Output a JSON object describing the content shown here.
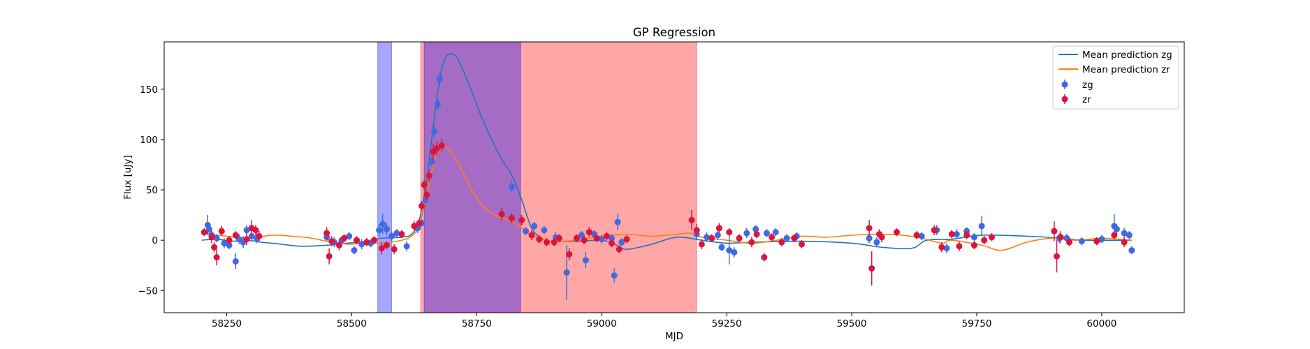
{
  "chart_data": {
    "type": "scatter",
    "title": "GP Regression",
    "xlabel": "MJD",
    "ylabel": "Flux [uJy]",
    "xlim": [
      58125,
      60165
    ],
    "ylim": [
      -72,
      197
    ],
    "x_ticks": [
      58250,
      58500,
      58750,
      59000,
      59250,
      59500,
      59750,
      60000
    ],
    "y_ticks": [
      -50,
      0,
      50,
      100,
      150
    ],
    "legend_position": "top-right",
    "shaded_regions": [
      {
        "x_start": 58552,
        "x_end": 58580,
        "color": "#0000ff",
        "opacity": 0.35
      },
      {
        "x_start": 58638,
        "x_end": 59190,
        "color": "#ff0000",
        "opacity": 0.35
      },
      {
        "x_start": 58645,
        "x_end": 58838,
        "color": "#0000ff",
        "opacity": 0.35
      }
    ],
    "series": [
      {
        "name": "Mean prediction zg",
        "kind": "line",
        "color": "#1f77b4",
        "x": [
          58200,
          58230,
          58260,
          58290,
          58320,
          58360,
          58400,
          58450,
          58490,
          58530,
          58560,
          58600,
          58620,
          58635,
          58650,
          58660,
          58670,
          58680,
          58690,
          58700,
          58710,
          58720,
          58740,
          58760,
          58780,
          58800,
          58820,
          58840,
          58860,
          58880,
          58900,
          58950,
          59000,
          59025,
          59050,
          59100,
          59150,
          59200,
          59250,
          59300,
          59400,
          59500,
          59560,
          59620,
          59650,
          59700,
          59760,
          59850,
          59920,
          59960,
          60000,
          60060
        ],
        "y": [
          0,
          1,
          -1,
          0,
          -2,
          -4,
          -6,
          -5,
          -3,
          -1,
          2,
          3,
          6,
          20,
          60,
          100,
          140,
          170,
          183,
          185,
          182,
          172,
          148,
          122,
          100,
          80,
          65,
          40,
          12,
          2,
          -1,
          -1,
          0,
          -4,
          -9,
          -4,
          3,
          0,
          -3,
          -2,
          -1,
          -3,
          -7,
          -8,
          0,
          1,
          5,
          4,
          2,
          0,
          0,
          0
        ]
      },
      {
        "name": "Mean prediction zr",
        "kind": "line",
        "color": "#ff7f0e",
        "x": [
          58200,
          58250,
          58300,
          58340,
          58380,
          58420,
          58460,
          58500,
          58530,
          58560,
          58600,
          58620,
          58635,
          58650,
          58665,
          58675,
          58685,
          58700,
          58720,
          58740,
          58760,
          58780,
          58800,
          58820,
          58840,
          58860,
          58880,
          58900,
          58950,
          59000,
          59050,
          59100,
          59150,
          59180,
          59200,
          59250,
          59300,
          59350,
          59400,
          59450,
          59500,
          59550,
          59600,
          59640,
          59680,
          59700,
          59760,
          59800,
          59850,
          59900,
          59950,
          60000,
          60060
        ],
        "y": [
          7,
          4,
          2,
          5,
          4,
          2,
          -2,
          -4,
          -2,
          -3,
          0,
          4,
          15,
          45,
          78,
          90,
          93,
          87,
          70,
          50,
          35,
          27,
          22,
          19,
          12,
          5,
          2,
          -1,
          0,
          4,
          6,
          4,
          6,
          7,
          3,
          0,
          -3,
          0,
          4,
          3,
          5,
          6,
          5,
          2,
          -3,
          0,
          -5,
          -10,
          -2,
          2,
          0,
          2,
          0
        ]
      },
      {
        "name": "zg",
        "kind": "points",
        "color": "#4169e1",
        "points": [
          [
            58212,
            15,
            10
          ],
          [
            58215,
            11,
            6
          ],
          [
            58220,
            5,
            5
          ],
          [
            58230,
            2,
            4
          ],
          [
            58245,
            -3,
            5
          ],
          [
            58255,
            -5,
            4
          ],
          [
            58268,
            -21,
            8
          ],
          [
            58275,
            1,
            5
          ],
          [
            58283,
            -2,
            6
          ],
          [
            58290,
            10,
            5
          ],
          [
            58300,
            4,
            4
          ],
          [
            58310,
            2,
            5
          ],
          [
            58450,
            3,
            4
          ],
          [
            58465,
            -2,
            5
          ],
          [
            58480,
            0,
            4
          ],
          [
            58495,
            4,
            4
          ],
          [
            58505,
            -10,
            4
          ],
          [
            58520,
            -4,
            5
          ],
          [
            58538,
            -3,
            4
          ],
          [
            58555,
            10,
            6
          ],
          [
            58562,
            16,
            10
          ],
          [
            58570,
            11,
            6
          ],
          [
            58580,
            4,
            5
          ],
          [
            58590,
            7,
            4
          ],
          [
            58610,
            -6,
            5
          ],
          [
            58632,
            12,
            5
          ],
          [
            58640,
            17,
            4
          ],
          [
            58648,
            40,
            5
          ],
          [
            58655,
            64,
            5
          ],
          [
            58660,
            78,
            5
          ],
          [
            58665,
            108,
            6
          ],
          [
            58672,
            135,
            6
          ],
          [
            58676,
            160,
            6
          ],
          [
            58820,
            53,
            6
          ],
          [
            58848,
            9,
            4
          ],
          [
            58865,
            14,
            4
          ],
          [
            58885,
            10,
            4
          ],
          [
            58908,
            3,
            5
          ],
          [
            58930,
            -32,
            27
          ],
          [
            58950,
            2,
            4
          ],
          [
            58960,
            5,
            4
          ],
          [
            58968,
            -20,
            8
          ],
          [
            58985,
            6,
            4
          ],
          [
            59000,
            1,
            4
          ],
          [
            59020,
            2,
            4
          ],
          [
            59025,
            -35,
            7
          ],
          [
            59032,
            18,
            8
          ],
          [
            59040,
            -2,
            4
          ],
          [
            59190,
            6,
            5
          ],
          [
            59210,
            3,
            5
          ],
          [
            59232,
            5,
            5
          ],
          [
            59240,
            -7,
            4
          ],
          [
            59255,
            -10,
            14
          ],
          [
            59265,
            -12,
            5
          ],
          [
            59290,
            7,
            5
          ],
          [
            59308,
            11,
            4
          ],
          [
            59330,
            7,
            4
          ],
          [
            59348,
            8,
            4
          ],
          [
            59370,
            2,
            4
          ],
          [
            59390,
            4,
            4
          ],
          [
            59535,
            2,
            5
          ],
          [
            59550,
            -2,
            5
          ],
          [
            59640,
            4,
            4
          ],
          [
            59670,
            10,
            5
          ],
          [
            59690,
            -8,
            5
          ],
          [
            59710,
            6,
            5
          ],
          [
            59730,
            9,
            4
          ],
          [
            59745,
            3,
            4
          ],
          [
            59760,
            14,
            10
          ],
          [
            59915,
            2,
            5
          ],
          [
            59930,
            2,
            4
          ],
          [
            59960,
            -1,
            4
          ],
          [
            60000,
            1,
            4
          ],
          [
            60025,
            14,
            12
          ],
          [
            60030,
            11,
            5
          ],
          [
            60045,
            7,
            5
          ],
          [
            60055,
            5,
            4
          ],
          [
            60060,
            -10,
            4
          ]
        ]
      },
      {
        "name": "zr",
        "kind": "points",
        "color": "#dc143c",
        "points": [
          [
            58205,
            8,
            4
          ],
          [
            58220,
            3,
            6
          ],
          [
            58225,
            -7,
            5
          ],
          [
            58230,
            -17,
            8
          ],
          [
            58240,
            9,
            5
          ],
          [
            58255,
            0,
            4
          ],
          [
            58268,
            5,
            4
          ],
          [
            58290,
            1,
            6
          ],
          [
            58300,
            12,
            8
          ],
          [
            58308,
            10,
            5
          ],
          [
            58315,
            4,
            5
          ],
          [
            58450,
            7,
            6
          ],
          [
            58455,
            -16,
            8
          ],
          [
            58460,
            -1,
            5
          ],
          [
            58475,
            -5,
            5
          ],
          [
            58485,
            2,
            4
          ],
          [
            58510,
            0,
            4
          ],
          [
            58530,
            -2,
            4
          ],
          [
            58545,
            0,
            4
          ],
          [
            58560,
            -8,
            6
          ],
          [
            58570,
            -5,
            4
          ],
          [
            58585,
            -9,
            5
          ],
          [
            58600,
            6,
            4
          ],
          [
            58625,
            14,
            5
          ],
          [
            58635,
            17,
            4
          ],
          [
            58640,
            34,
            5
          ],
          [
            58645,
            55,
            5
          ],
          [
            58650,
            45,
            5
          ],
          [
            58655,
            64,
            6
          ],
          [
            58663,
            88,
            8
          ],
          [
            58670,
            91,
            7
          ],
          [
            58680,
            94,
            6
          ],
          [
            58800,
            26,
            6
          ],
          [
            58820,
            22,
            5
          ],
          [
            58840,
            20,
            5
          ],
          [
            58860,
            5,
            5
          ],
          [
            58875,
            1,
            4
          ],
          [
            58890,
            -2,
            4
          ],
          [
            58905,
            -2,
            4
          ],
          [
            58915,
            2,
            4
          ],
          [
            58935,
            -14,
            6
          ],
          [
            58950,
            2,
            4
          ],
          [
            58965,
            0,
            4
          ],
          [
            58975,
            8,
            5
          ],
          [
            58990,
            2,
            4
          ],
          [
            59010,
            4,
            4
          ],
          [
            59020,
            -3,
            4
          ],
          [
            59035,
            -9,
            4
          ],
          [
            59050,
            1,
            4
          ],
          [
            59180,
            20,
            10
          ],
          [
            59190,
            10,
            6
          ],
          [
            59200,
            -4,
            5
          ],
          [
            59220,
            2,
            4
          ],
          [
            59235,
            12,
            5
          ],
          [
            59255,
            8,
            4
          ],
          [
            59275,
            2,
            4
          ],
          [
            59300,
            -2,
            5
          ],
          [
            59310,
            6,
            4
          ],
          [
            59325,
            -17,
            4
          ],
          [
            59340,
            3,
            4
          ],
          [
            59360,
            -2,
            4
          ],
          [
            59385,
            2,
            4
          ],
          [
            59400,
            -4,
            4
          ],
          [
            59535,
            12,
            8
          ],
          [
            59540,
            -28,
            17
          ],
          [
            59555,
            6,
            5
          ],
          [
            59560,
            3,
            5
          ],
          [
            59590,
            8,
            4
          ],
          [
            59630,
            5,
            4
          ],
          [
            59665,
            10,
            5
          ],
          [
            59680,
            -7,
            5
          ],
          [
            59700,
            6,
            4
          ],
          [
            59715,
            -6,
            5
          ],
          [
            59730,
            5,
            4
          ],
          [
            59745,
            -5,
            4
          ],
          [
            59765,
            0,
            4
          ],
          [
            59780,
            3,
            4
          ],
          [
            59905,
            9,
            10
          ],
          [
            59910,
            -16,
            16
          ],
          [
            59918,
            3,
            6
          ],
          [
            59935,
            -2,
            4
          ],
          [
            59990,
            -1,
            4
          ],
          [
            60025,
            5,
            4
          ],
          [
            60045,
            -2,
            5
          ]
        ]
      }
    ]
  }
}
